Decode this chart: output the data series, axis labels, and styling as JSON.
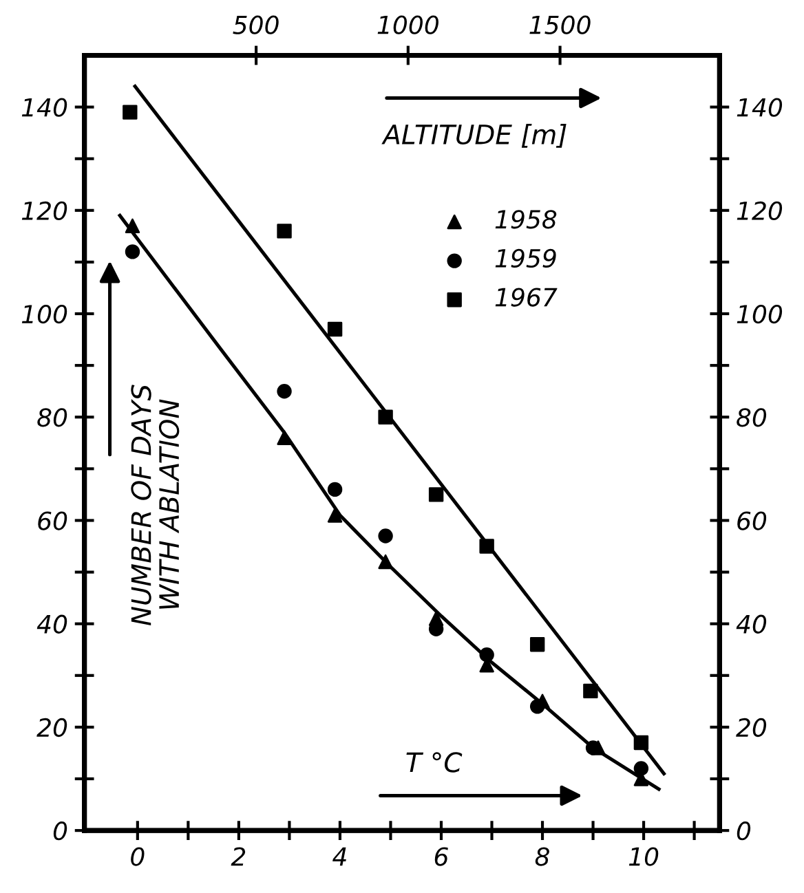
{
  "chart_data": {
    "type": "scatter",
    "xlabel": "T °C",
    "x2label": "ALTITUDE [m]",
    "ylabel": "NUMBER OF DAYS\nWITH ABLATION",
    "xlim": [
      -1.05,
      11.5
    ],
    "xticks": [
      0,
      {
        "value": 1,
        "label": null
      },
      2,
      {
        "value": 3,
        "label": null
      },
      4,
      {
        "value": 5,
        "label": null
      },
      6,
      {
        "value": 7,
        "label": null
      },
      8,
      {
        "value": 9,
        "label": null
      },
      10,
      {
        "value": 11,
        "label": null
      }
    ],
    "x2lim": [
      -65,
      2025
    ],
    "x2ticks": [
      500,
      1000,
      1500
    ],
    "ylim": [
      0,
      150
    ],
    "yticks": [
      0,
      {
        "value": 10,
        "label": null
      },
      20,
      {
        "value": 30,
        "label": null
      },
      40,
      {
        "value": 50,
        "label": null
      },
      60,
      {
        "value": 70,
        "label": null
      },
      80,
      {
        "value": 90,
        "label": null
      },
      100,
      {
        "value": 110,
        "label": null
      },
      120,
      {
        "value": 130,
        "label": null
      },
      140
    ],
    "y2lim": [
      0,
      150
    ],
    "y2ticks": [
      0,
      {
        "value": 10,
        "label": null
      },
      20,
      {
        "value": 30,
        "label": null
      },
      40,
      {
        "value": 50,
        "label": null
      },
      60,
      {
        "value": 70,
        "label": null
      },
      80,
      {
        "value": 90,
        "label": null
      },
      100,
      {
        "value": 110,
        "label": null
      },
      120,
      {
        "value": 130,
        "label": null
      },
      140
    ],
    "grid": false,
    "legend": "top right",
    "series": [
      {
        "name": "1958",
        "color": "#000000",
        "marker": "triangle",
        "x": [
          -0.1,
          2.9,
          3.9,
          4.9,
          5.9,
          6.9,
          8.0,
          9.1,
          9.95
        ],
        "values": [
          117,
          76,
          61,
          52,
          41,
          32,
          25,
          16,
          10
        ]
      },
      {
        "name": "1959",
        "color": "#000000",
        "marker": "circle",
        "x": [
          -0.1,
          2.9,
          3.9,
          4.9,
          5.9,
          6.9,
          7.9,
          9.0,
          9.95
        ],
        "values": [
          112,
          85,
          66,
          57,
          39,
          34,
          24,
          16,
          12
        ]
      },
      {
        "name": "1967",
        "color": "#000000",
        "marker": "square",
        "x": [
          -0.15,
          2.9,
          3.9,
          4.9,
          5.9,
          6.9,
          7.9,
          8.95,
          9.95
        ],
        "values": [
          139,
          116,
          97,
          80,
          65,
          55,
          36,
          27,
          17
        ]
      },
      {
        "type": "line",
        "color": "#000000",
        "marker": "none",
        "line_style": "solid",
        "x": [
          -0.05,
          10.4
        ],
        "values": [
          144,
          11
        ]
      },
      {
        "type": "line",
        "color": "#000000",
        "marker": "none",
        "line_style": "solid",
        "x": [
          -0.35,
          1.5,
          2.9,
          4.0,
          5.0,
          6.0,
          7.0,
          8.0,
          9.0,
          10.3
        ],
        "values": [
          119,
          95,
          77,
          61,
          51,
          41.5,
          32.5,
          24.5,
          16,
          8
        ]
      }
    ]
  }
}
